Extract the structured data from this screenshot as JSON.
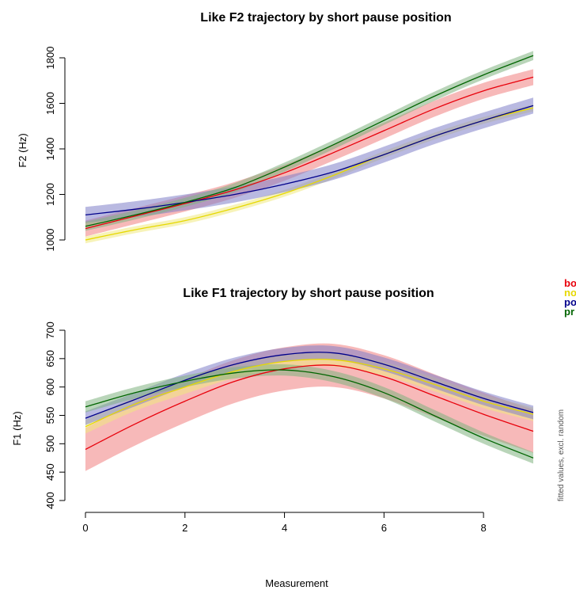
{
  "side_note": "fitted values, excl. random",
  "legend": [
    {
      "label": "bo",
      "color": "#e8000b"
    },
    {
      "label": "no",
      "color": "#e6d800"
    },
    {
      "label": "po",
      "color": "#00008b"
    },
    {
      "label": "pr",
      "color": "#006400"
    }
  ],
  "chart_data": [
    {
      "type": "line",
      "title": "Like F2 trajectory by short pause position",
      "xlabel": "",
      "ylabel": "F2 (Hz)",
      "xlim": [
        0,
        9
      ],
      "ylim": [
        1000,
        1800
      ],
      "yticks": [
        1000,
        1200,
        1400,
        1600,
        1800
      ],
      "xticks": [],
      "grid": false,
      "x": [
        0,
        1,
        2,
        3,
        4,
        5,
        6,
        7,
        8,
        9
      ],
      "series": [
        {
          "name": "bo",
          "color": "#e8000b",
          "band": "#f08080",
          "values": [
            1050,
            1105,
            1160,
            1220,
            1295,
            1385,
            1480,
            1575,
            1655,
            1715
          ],
          "ci": 35
        },
        {
          "name": "no",
          "color": "#e6d800",
          "band": "#f0ea80",
          "values": [
            1000,
            1045,
            1085,
            1140,
            1205,
            1285,
            1375,
            1455,
            1525,
            1580
          ],
          "ci": 15
        },
        {
          "name": "po",
          "color": "#00008b",
          "band": "#8080c8",
          "values": [
            1110,
            1135,
            1165,
            1200,
            1245,
            1300,
            1375,
            1455,
            1525,
            1590
          ],
          "ci": 35
        },
        {
          "name": "pr",
          "color": "#006400",
          "band": "#80b280",
          "values": [
            1060,
            1110,
            1165,
            1230,
            1320,
            1420,
            1525,
            1630,
            1725,
            1810
          ],
          "ci": 20
        }
      ]
    },
    {
      "type": "line",
      "title": "Like F1 trajectory by short pause position",
      "xlabel": "Measurement",
      "ylabel": "F1 (Hz)",
      "xlim": [
        0,
        9
      ],
      "ylim": [
        400,
        700
      ],
      "yticks": [
        400,
        450,
        500,
        550,
        600,
        650,
        700
      ],
      "xticks": [
        0,
        2,
        4,
        6,
        8
      ],
      "grid": false,
      "x": [
        0,
        1,
        2,
        3,
        4,
        5,
        6,
        7,
        8,
        9
      ],
      "series": [
        {
          "name": "bo",
          "color": "#e8000b",
          "band": "#f08080",
          "values": [
            490,
            535,
            575,
            610,
            632,
            638,
            618,
            585,
            552,
            522
          ],
          "ci": 38
        },
        {
          "name": "no",
          "color": "#e6d800",
          "band": "#f0ea80",
          "values": [
            530,
            570,
            600,
            628,
            645,
            648,
            632,
            605,
            575,
            552
          ],
          "ci": 12
        },
        {
          "name": "po",
          "color": "#00008b",
          "band": "#8080c8",
          "values": [
            545,
            578,
            612,
            640,
            657,
            660,
            640,
            610,
            580,
            555
          ],
          "ci": 12
        },
        {
          "name": "pr",
          "color": "#006400",
          "band": "#80b280",
          "values": [
            565,
            590,
            610,
            625,
            630,
            618,
            590,
            550,
            510,
            475
          ],
          "ci": 10
        }
      ]
    }
  ]
}
